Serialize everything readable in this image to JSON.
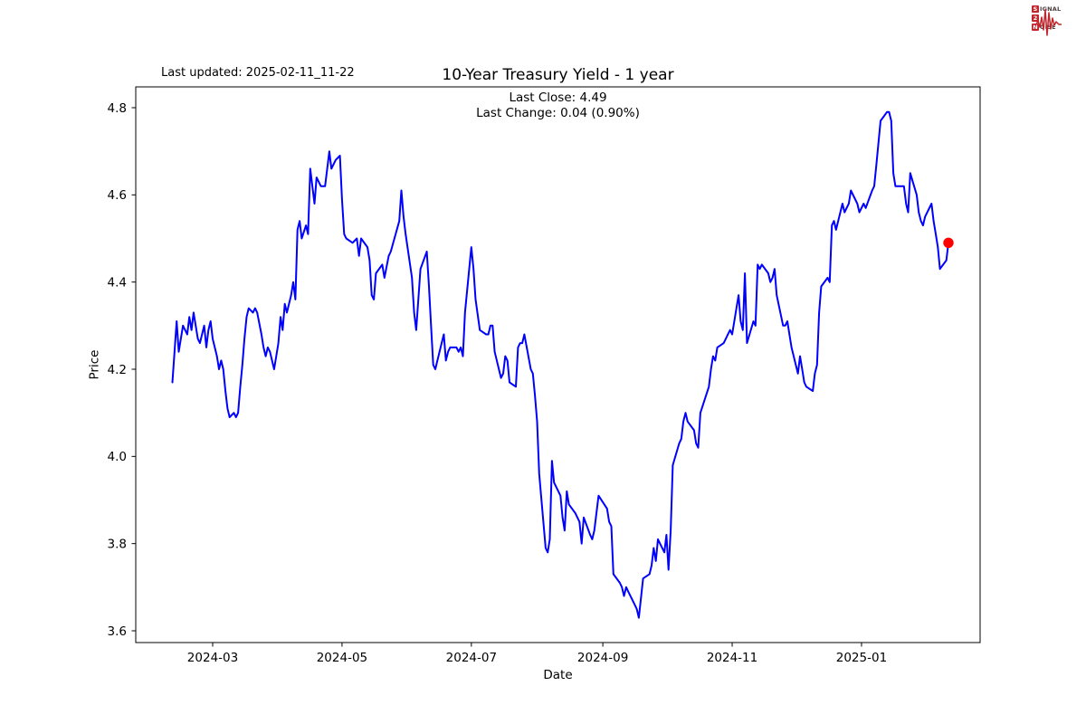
{
  "page": {
    "last_updated": "Last updated: 2025-02-11_11-22"
  },
  "logo": {
    "line1_initial": "S",
    "line1_rest": "IGNAL",
    "line2_initial": "2",
    "line3_initial": "N",
    "line3_rest": "OISE",
    "accent_color": "#c0252c"
  },
  "chart_data": {
    "type": "line",
    "title": "10-Year Treasury Yield - 1 year",
    "subtitle_line1": "Last Close: 4.49",
    "subtitle_line2": "Last Change: 0.04 (0.90%)",
    "xlabel": "Date",
    "ylabel": "Price",
    "grid": false,
    "legend_position": "none",
    "line_color": "#0000ff",
    "last_point_marker_color": "#ff0000",
    "ylim": [
      3.573,
      4.848
    ],
    "y_ticks": [
      {
        "value": 3.6,
        "label": "3.6"
      },
      {
        "value": 3.8,
        "label": "3.8"
      },
      {
        "value": 4.0,
        "label": "4.0"
      },
      {
        "value": 4.2,
        "label": "4.2"
      },
      {
        "value": 4.4,
        "label": "4.4"
      },
      {
        "value": 4.6,
        "label": "4.6"
      },
      {
        "value": 4.8,
        "label": "4.8"
      }
    ],
    "x_ticks": [
      {
        "date": "2024-03-01",
        "label": "2024-03"
      },
      {
        "date": "2024-05-01",
        "label": "2024-05"
      },
      {
        "date": "2024-07-01",
        "label": "2024-07"
      },
      {
        "date": "2024-09-01",
        "label": "2024-09"
      },
      {
        "date": "2024-11-01",
        "label": "2024-11"
      },
      {
        "date": "2025-01-01",
        "label": "2025-01"
      }
    ],
    "series": [
      {
        "name": "10-Year Treasury Yield",
        "points": [
          [
            "2024-02-11",
            4.17
          ],
          [
            "2024-02-13",
            4.31
          ],
          [
            "2024-02-14",
            4.24
          ],
          [
            "2024-02-16",
            4.3
          ],
          [
            "2024-02-18",
            4.28
          ],
          [
            "2024-02-19",
            4.32
          ],
          [
            "2024-02-20",
            4.29
          ],
          [
            "2024-02-21",
            4.33
          ],
          [
            "2024-02-23",
            4.27
          ],
          [
            "2024-02-24",
            4.26
          ],
          [
            "2024-02-26",
            4.3
          ],
          [
            "2024-02-27",
            4.25
          ],
          [
            "2024-02-28",
            4.29
          ],
          [
            "2024-02-29",
            4.31
          ],
          [
            "2024-03-01",
            4.27
          ],
          [
            "2024-03-03",
            4.23
          ],
          [
            "2024-03-04",
            4.2
          ],
          [
            "2024-03-05",
            4.22
          ],
          [
            "2024-03-06",
            4.2
          ],
          [
            "2024-03-07",
            4.15
          ],
          [
            "2024-03-08",
            4.11
          ],
          [
            "2024-03-09",
            4.09
          ],
          [
            "2024-03-11",
            4.1
          ],
          [
            "2024-03-12",
            4.09
          ],
          [
            "2024-03-13",
            4.1
          ],
          [
            "2024-03-14",
            4.16
          ],
          [
            "2024-03-15",
            4.21
          ],
          [
            "2024-03-16",
            4.27
          ],
          [
            "2024-03-17",
            4.32
          ],
          [
            "2024-03-18",
            4.34
          ],
          [
            "2024-03-20",
            4.33
          ],
          [
            "2024-03-21",
            4.34
          ],
          [
            "2024-03-22",
            4.33
          ],
          [
            "2024-03-24",
            4.28
          ],
          [
            "2024-03-25",
            4.25
          ],
          [
            "2024-03-26",
            4.23
          ],
          [
            "2024-03-27",
            4.25
          ],
          [
            "2024-03-28",
            4.24
          ],
          [
            "2024-03-30",
            4.2
          ],
          [
            "2024-04-01",
            4.26
          ],
          [
            "2024-04-02",
            4.32
          ],
          [
            "2024-04-03",
            4.29
          ],
          [
            "2024-04-04",
            4.35
          ],
          [
            "2024-04-05",
            4.33
          ],
          [
            "2024-04-07",
            4.37
          ],
          [
            "2024-04-08",
            4.4
          ],
          [
            "2024-04-09",
            4.36
          ],
          [
            "2024-04-10",
            4.52
          ],
          [
            "2024-04-11",
            4.54
          ],
          [
            "2024-04-12",
            4.5
          ],
          [
            "2024-04-14",
            4.53
          ],
          [
            "2024-04-15",
            4.51
          ],
          [
            "2024-04-16",
            4.66
          ],
          [
            "2024-04-18",
            4.58
          ],
          [
            "2024-04-19",
            4.64
          ],
          [
            "2024-04-21",
            4.62
          ],
          [
            "2024-04-23",
            4.62
          ],
          [
            "2024-04-25",
            4.7
          ],
          [
            "2024-04-26",
            4.66
          ],
          [
            "2024-04-28",
            4.68
          ],
          [
            "2024-04-30",
            4.69
          ],
          [
            "2024-05-01",
            4.59
          ],
          [
            "2024-05-02",
            4.51
          ],
          [
            "2024-05-03",
            4.5
          ],
          [
            "2024-05-06",
            4.49
          ],
          [
            "2024-05-08",
            4.5
          ],
          [
            "2024-05-09",
            4.46
          ],
          [
            "2024-05-10",
            4.5
          ],
          [
            "2024-05-13",
            4.48
          ],
          [
            "2024-05-14",
            4.45
          ],
          [
            "2024-05-15",
            4.37
          ],
          [
            "2024-05-16",
            4.36
          ],
          [
            "2024-05-17",
            4.42
          ],
          [
            "2024-05-20",
            4.44
          ],
          [
            "2024-05-21",
            4.41
          ],
          [
            "2024-05-23",
            4.46
          ],
          [
            "2024-05-24",
            4.47
          ],
          [
            "2024-05-28",
            4.54
          ],
          [
            "2024-05-29",
            4.61
          ],
          [
            "2024-05-30",
            4.55
          ],
          [
            "2024-05-31",
            4.51
          ],
          [
            "2024-06-03",
            4.41
          ],
          [
            "2024-06-04",
            4.33
          ],
          [
            "2024-06-05",
            4.29
          ],
          [
            "2024-06-07",
            4.43
          ],
          [
            "2024-06-10",
            4.47
          ],
          [
            "2024-06-11",
            4.39
          ],
          [
            "2024-06-12",
            4.3
          ],
          [
            "2024-06-13",
            4.21
          ],
          [
            "2024-06-14",
            4.2
          ],
          [
            "2024-06-17",
            4.26
          ],
          [
            "2024-06-18",
            4.28
          ],
          [
            "2024-06-19",
            4.22
          ],
          [
            "2024-06-20",
            4.24
          ],
          [
            "2024-06-21",
            4.25
          ],
          [
            "2024-06-24",
            4.25
          ],
          [
            "2024-06-25",
            4.24
          ],
          [
            "2024-06-26",
            4.25
          ],
          [
            "2024-06-27",
            4.23
          ],
          [
            "2024-06-28",
            4.33
          ],
          [
            "2024-07-01",
            4.48
          ],
          [
            "2024-07-02",
            4.43
          ],
          [
            "2024-07-03",
            4.36
          ],
          [
            "2024-07-05",
            4.29
          ],
          [
            "2024-07-08",
            4.28
          ],
          [
            "2024-07-09",
            4.28
          ],
          [
            "2024-07-10",
            4.3
          ],
          [
            "2024-07-11",
            4.3
          ],
          [
            "2024-07-12",
            4.24
          ],
          [
            "2024-07-15",
            4.18
          ],
          [
            "2024-07-16",
            4.19
          ],
          [
            "2024-07-17",
            4.23
          ],
          [
            "2024-07-18",
            4.22
          ],
          [
            "2024-07-19",
            4.17
          ],
          [
            "2024-07-22",
            4.16
          ],
          [
            "2024-07-23",
            4.25
          ],
          [
            "2024-07-24",
            4.26
          ],
          [
            "2024-07-25",
            4.26
          ],
          [
            "2024-07-26",
            4.28
          ],
          [
            "2024-07-29",
            4.2
          ],
          [
            "2024-07-30",
            4.19
          ],
          [
            "2024-07-31",
            4.14
          ],
          [
            "2024-08-01",
            4.08
          ],
          [
            "2024-08-02",
            3.96
          ],
          [
            "2024-08-05",
            3.79
          ],
          [
            "2024-08-06",
            3.78
          ],
          [
            "2024-08-07",
            3.81
          ],
          [
            "2024-08-08",
            3.99
          ],
          [
            "2024-08-09",
            3.94
          ],
          [
            "2024-08-12",
            3.91
          ],
          [
            "2024-08-13",
            3.86
          ],
          [
            "2024-08-14",
            3.83
          ],
          [
            "2024-08-15",
            3.92
          ],
          [
            "2024-08-16",
            3.89
          ],
          [
            "2024-08-19",
            3.87
          ],
          [
            "2024-08-20",
            3.86
          ],
          [
            "2024-08-21",
            3.85
          ],
          [
            "2024-08-22",
            3.8
          ],
          [
            "2024-08-23",
            3.86
          ],
          [
            "2024-08-26",
            3.82
          ],
          [
            "2024-08-27",
            3.81
          ],
          [
            "2024-08-28",
            3.83
          ],
          [
            "2024-08-30",
            3.91
          ],
          [
            "2024-09-03",
            3.88
          ],
          [
            "2024-09-04",
            3.85
          ],
          [
            "2024-09-05",
            3.84
          ],
          [
            "2024-09-06",
            3.73
          ],
          [
            "2024-09-09",
            3.71
          ],
          [
            "2024-09-10",
            3.7
          ],
          [
            "2024-09-11",
            3.68
          ],
          [
            "2024-09-12",
            3.7
          ],
          [
            "2024-09-13",
            3.69
          ],
          [
            "2024-09-16",
            3.66
          ],
          [
            "2024-09-17",
            3.65
          ],
          [
            "2024-09-18",
            3.63
          ],
          [
            "2024-09-20",
            3.72
          ],
          [
            "2024-09-23",
            3.73
          ],
          [
            "2024-09-24",
            3.75
          ],
          [
            "2024-09-25",
            3.79
          ],
          [
            "2024-09-26",
            3.76
          ],
          [
            "2024-09-27",
            3.81
          ],
          [
            "2024-09-30",
            3.78
          ],
          [
            "2024-10-01",
            3.82
          ],
          [
            "2024-10-02",
            3.74
          ],
          [
            "2024-10-03",
            3.83
          ],
          [
            "2024-10-04",
            3.98
          ],
          [
            "2024-10-07",
            4.03
          ],
          [
            "2024-10-08",
            4.04
          ],
          [
            "2024-10-09",
            4.08
          ],
          [
            "2024-10-10",
            4.1
          ],
          [
            "2024-10-11",
            4.08
          ],
          [
            "2024-10-14",
            4.06
          ],
          [
            "2024-10-15",
            4.03
          ],
          [
            "2024-10-16",
            4.02
          ],
          [
            "2024-10-17",
            4.1
          ],
          [
            "2024-10-21",
            4.16
          ],
          [
            "2024-10-22",
            4.2
          ],
          [
            "2024-10-23",
            4.23
          ],
          [
            "2024-10-24",
            4.22
          ],
          [
            "2024-10-25",
            4.25
          ],
          [
            "2024-10-28",
            4.26
          ],
          [
            "2024-10-29",
            4.27
          ],
          [
            "2024-10-30",
            4.28
          ],
          [
            "2024-10-31",
            4.29
          ],
          [
            "2024-11-01",
            4.28
          ],
          [
            "2024-11-04",
            4.37
          ],
          [
            "2024-11-05",
            4.31
          ],
          [
            "2024-11-06",
            4.29
          ],
          [
            "2024-11-07",
            4.42
          ],
          [
            "2024-11-08",
            4.26
          ],
          [
            "2024-11-11",
            4.31
          ],
          [
            "2024-11-12",
            4.3
          ],
          [
            "2024-11-13",
            4.44
          ],
          [
            "2024-11-14",
            4.43
          ],
          [
            "2024-11-15",
            4.44
          ],
          [
            "2024-11-18",
            4.42
          ],
          [
            "2024-11-19",
            4.4
          ],
          [
            "2024-11-20",
            4.41
          ],
          [
            "2024-11-21",
            4.43
          ],
          [
            "2024-11-22",
            4.37
          ],
          [
            "2024-11-25",
            4.3
          ],
          [
            "2024-11-26",
            4.3
          ],
          [
            "2024-11-27",
            4.31
          ],
          [
            "2024-11-29",
            4.25
          ],
          [
            "2024-12-02",
            4.19
          ],
          [
            "2024-12-03",
            4.23
          ],
          [
            "2024-12-04",
            4.2
          ],
          [
            "2024-12-05",
            4.17
          ],
          [
            "2024-12-06",
            4.16
          ],
          [
            "2024-12-09",
            4.15
          ],
          [
            "2024-12-10",
            4.19
          ],
          [
            "2024-12-11",
            4.21
          ],
          [
            "2024-12-12",
            4.33
          ],
          [
            "2024-12-13",
            4.39
          ],
          [
            "2024-12-16",
            4.41
          ],
          [
            "2024-12-17",
            4.4
          ],
          [
            "2024-12-18",
            4.53
          ],
          [
            "2024-12-19",
            4.54
          ],
          [
            "2024-12-20",
            4.52
          ],
          [
            "2024-12-23",
            4.58
          ],
          [
            "2024-12-24",
            4.56
          ],
          [
            "2024-12-26",
            4.58
          ],
          [
            "2024-12-27",
            4.61
          ],
          [
            "2024-12-30",
            4.58
          ],
          [
            "2024-12-31",
            4.56
          ],
          [
            "2025-01-02",
            4.58
          ],
          [
            "2025-01-03",
            4.57
          ],
          [
            "2025-01-06",
            4.61
          ],
          [
            "2025-01-07",
            4.62
          ],
          [
            "2025-01-08",
            4.67
          ],
          [
            "2025-01-10",
            4.77
          ],
          [
            "2025-01-13",
            4.79
          ],
          [
            "2025-01-14",
            4.79
          ],
          [
            "2025-01-15",
            4.77
          ],
          [
            "2025-01-16",
            4.65
          ],
          [
            "2025-01-17",
            4.62
          ],
          [
            "2025-01-21",
            4.62
          ],
          [
            "2025-01-22",
            4.58
          ],
          [
            "2025-01-23",
            4.56
          ],
          [
            "2025-01-24",
            4.65
          ],
          [
            "2025-01-27",
            4.6
          ],
          [
            "2025-01-28",
            4.56
          ],
          [
            "2025-01-29",
            4.54
          ],
          [
            "2025-01-30",
            4.53
          ],
          [
            "2025-01-31",
            4.55
          ],
          [
            "2025-02-03",
            4.58
          ],
          [
            "2025-02-04",
            4.54
          ],
          [
            "2025-02-05",
            4.51
          ],
          [
            "2025-02-06",
            4.48
          ],
          [
            "2025-02-07",
            4.43
          ],
          [
            "2025-02-10",
            4.45
          ],
          [
            "2025-02-11",
            4.49
          ]
        ]
      }
    ]
  }
}
